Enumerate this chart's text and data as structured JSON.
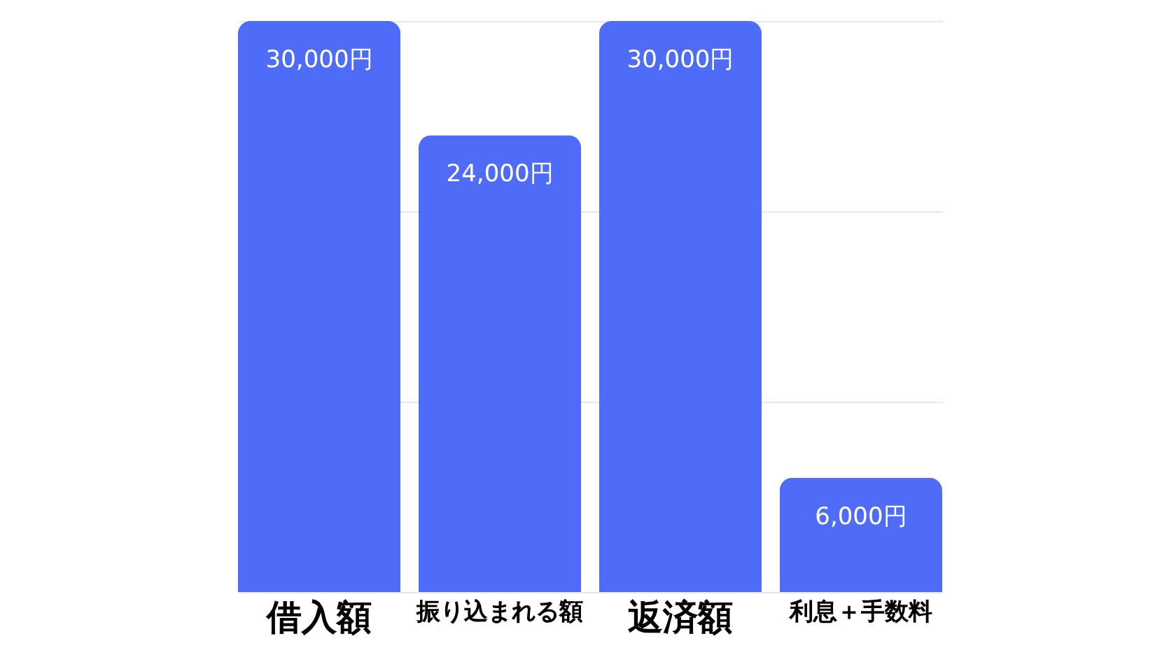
{
  "chart_data": {
    "type": "bar",
    "categories": [
      "借入額",
      "振り込まれる額",
      "返済額",
      "利息＋手数料"
    ],
    "values": [
      30000,
      24000,
      30000,
      6000
    ],
    "color": "#4f6cf8",
    "value_labels": [
      "30,000円",
      "24,000円",
      "30,000円",
      "6,000円"
    ],
    "ylim": [
      0,
      30000
    ],
    "yticks": [
      {
        "value": 0,
        "label": null
      },
      {
        "value": 10000,
        "label": null
      },
      {
        "value": 20000,
        "label": null
      },
      {
        "value": 30000,
        "label": null
      }
    ],
    "grid": "y",
    "tick_labels": "x"
  }
}
